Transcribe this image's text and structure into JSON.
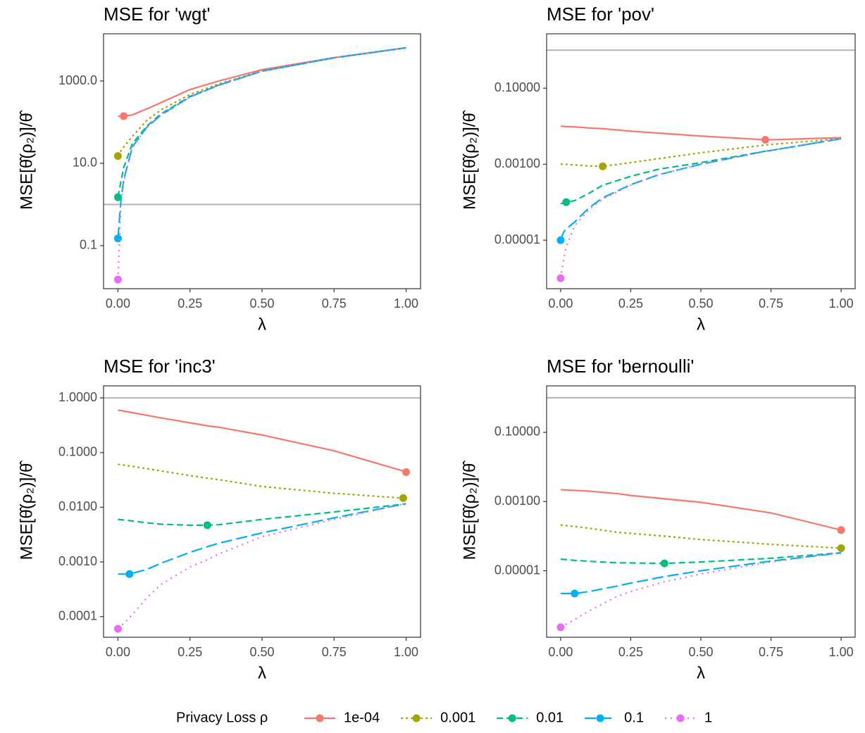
{
  "chart_data": [
    {
      "type": "line",
      "title": "MSE for 'wgt'",
      "x_label": "λ",
      "y_label": "MSE[θ̂(ρ₂)]/θ̂",
      "log_y": true,
      "grid": false,
      "reference_line": 1,
      "xlim": [
        -0.05,
        1.05
      ],
      "xticks": [
        {
          "value": 0,
          "label": "0.00"
        },
        {
          "value": 0.25,
          "label": "0.25"
        },
        {
          "value": 0.5,
          "label": "0.50"
        },
        {
          "value": 0.75,
          "label": "0.75"
        },
        {
          "value": 1,
          "label": "1.00"
        }
      ],
      "ylim": [
        0.009,
        14000
      ],
      "yticks": [
        {
          "value": 0.1,
          "label": "0.1"
        },
        {
          "value": 10,
          "label": "10.0"
        },
        {
          "value": 1000,
          "label": "1000.0"
        }
      ],
      "x": [
        0,
        0.01,
        0.02,
        0.05,
        0.1,
        0.15,
        0.25,
        0.35,
        0.5,
        0.75,
        1
      ],
      "series": [
        {
          "name": "1e-04",
          "color": "#F8766D",
          "linestyle": "solid",
          "values": [
            140,
            140,
            140,
            150,
            210,
            300,
            620,
            1000,
            1880,
            3700,
            6400
          ],
          "marker": {
            "x": 0.02,
            "y": 140
          }
        },
        {
          "name": "0.001",
          "color": "#A3A500",
          "linestyle": "dotted",
          "values": [
            15,
            20,
            25,
            45,
            110,
            200,
            470,
            850,
            1750,
            3650,
            6400
          ],
          "marker": {
            "x": 0,
            "y": 15
          }
        },
        {
          "name": "0.01",
          "color": "#00BF7D",
          "linestyle": "dashed",
          "values": [
            1.5,
            3.5,
            8,
            30,
            80,
            160,
            420,
            800,
            1740,
            3650,
            6400
          ],
          "marker": {
            "x": 0,
            "y": 1.5
          }
        },
        {
          "name": "0.1",
          "color": "#00B0F6",
          "linestyle": "longdash",
          "values": [
            0.15,
            1.2,
            4,
            25,
            75,
            150,
            410,
            790,
            1730,
            3650,
            6400
          ],
          "marker": {
            "x": 0,
            "y": 0.15
          }
        },
        {
          "name": "1",
          "color": "#E76BF3",
          "linestyle": "dotdot",
          "values": [
            0.015,
            1,
            3.5,
            24,
            74,
            150,
            410,
            790,
            1730,
            3650,
            6400
          ],
          "marker": {
            "x": 0,
            "y": 0.015
          }
        }
      ]
    },
    {
      "type": "line",
      "title": "MSE for 'pov'",
      "x_label": "λ",
      "y_label": "MSE[θ̂(ρ₂)]/θ̂",
      "log_y": true,
      "grid": false,
      "reference_line": 1,
      "xlim": [
        -0.05,
        1.05
      ],
      "xticks": [
        {
          "value": 0,
          "label": "0.00"
        },
        {
          "value": 0.25,
          "label": "0.25"
        },
        {
          "value": 0.5,
          "label": "0.50"
        },
        {
          "value": 0.75,
          "label": "0.75"
        },
        {
          "value": 1,
          "label": "1.00"
        }
      ],
      "ylim": [
        5.3e-07,
        2.7
      ],
      "yticks": [
        {
          "value": 1e-05,
          "label": "0.00001"
        },
        {
          "value": 0.001,
          "label": "0.00100"
        },
        {
          "value": 0.1,
          "label": "0.10000"
        }
      ],
      "x": [
        0,
        0.01,
        0.02,
        0.05,
        0.1,
        0.15,
        0.25,
        0.35,
        0.5,
        0.73,
        0.75,
        1
      ],
      "series": [
        {
          "name": "1e-04",
          "color": "#F8766D",
          "linestyle": "solid",
          "values": [
            0.01,
            0.0099,
            0.0098,
            0.0096,
            0.009,
            0.0086,
            0.0074,
            0.0066,
            0.0055,
            0.0044,
            0.0044,
            0.005
          ],
          "marker": {
            "x": 0.73,
            "y": 0.0044
          }
        },
        {
          "name": "0.001",
          "color": "#A3A500",
          "linestyle": "dotted",
          "values": [
            0.001,
            0.001,
            0.00099,
            0.00096,
            0.0009,
            0.00088,
            0.0011,
            0.0014,
            0.002,
            0.0032,
            0.0033,
            0.0047
          ],
          "marker": {
            "x": 0.15,
            "y": 0.00088
          }
        },
        {
          "name": "0.01",
          "color": "#00BF7D",
          "linestyle": "dashed",
          "values": [
            9.2e-05,
            9.6e-05,
            0.0001,
            0.00011,
            0.00017,
            0.00028,
            0.00048,
            0.00074,
            0.0011,
            0.0022,
            0.0023,
            0.0047
          ],
          "marker": {
            "x": 0.02,
            "y": 0.0001
          }
        },
        {
          "name": "0.1",
          "color": "#00B0F6",
          "linestyle": "longdash",
          "values": [
            1e-05,
            1.6e-05,
            2e-05,
            3e-05,
            7e-05,
            0.00013,
            0.00029,
            0.00053,
            0.001,
            0.0022,
            0.0023,
            0.0047
          ],
          "marker": {
            "x": 0,
            "y": 1e-05
          }
        },
        {
          "name": "1",
          "color": "#E76BF3",
          "linestyle": "dotdot",
          "values": [
            1e-06,
            2.9e-06,
            6.8e-06,
            2.4e-05,
            6.3e-05,
            0.00012,
            0.00028,
            0.00053,
            0.001,
            0.0022,
            0.0023,
            0.0047
          ],
          "marker": {
            "x": 0,
            "y": 1e-06
          }
        }
      ]
    },
    {
      "type": "line",
      "title": "MSE for 'inc3'",
      "x_label": "λ",
      "y_label": "MSE[θ̂(ρ₂)]/θ̂",
      "log_y": true,
      "grid": false,
      "reference_line": 1,
      "xlim": [
        -0.05,
        1.05
      ],
      "xticks": [
        {
          "value": 0,
          "label": "0.00"
        },
        {
          "value": 0.25,
          "label": "0.25"
        },
        {
          "value": 0.5,
          "label": "0.50"
        },
        {
          "value": 0.75,
          "label": "0.75"
        },
        {
          "value": 1,
          "label": "1.00"
        }
      ],
      "ylim": [
        4.2e-05,
        1.66
      ],
      "yticks": [
        {
          "value": 0.0001,
          "label": "0.0001"
        },
        {
          "value": 0.001,
          "label": "0.0010"
        },
        {
          "value": 0.01,
          "label": "0.0100"
        },
        {
          "value": 0.1,
          "label": "0.1000"
        },
        {
          "value": 1,
          "label": "1.0000"
        }
      ],
      "x": [
        0,
        0.04,
        0.1,
        0.15,
        0.25,
        0.31,
        0.35,
        0.5,
        0.75,
        0.99,
        1
      ],
      "series": [
        {
          "name": "1e-04",
          "color": "#F8766D",
          "linestyle": "solid",
          "values": [
            0.6,
            0.55,
            0.48,
            0.43,
            0.35,
            0.31,
            0.29,
            0.21,
            0.108,
            0.046,
            0.044
          ],
          "marker": {
            "x": 1,
            "y": 0.044
          }
        },
        {
          "name": "0.001",
          "color": "#A3A500",
          "linestyle": "dotted",
          "values": [
            0.061,
            0.057,
            0.051,
            0.046,
            0.038,
            0.034,
            0.032,
            0.024,
            0.018,
            0.0147,
            0.0147
          ],
          "marker": {
            "x": 0.99,
            "y": 0.0147
          }
        },
        {
          "name": "0.01",
          "color": "#00BF7D",
          "linestyle": "dashed",
          "values": [
            0.006,
            0.0057,
            0.0052,
            0.0049,
            0.0047,
            0.0047,
            0.0048,
            0.006,
            0.0082,
            0.0114,
            0.0116
          ],
          "marker": {
            "x": 0.31,
            "y": 0.0047
          }
        },
        {
          "name": "0.1",
          "color": "#00B0F6",
          "linestyle": "longdash",
          "values": [
            0.0006,
            0.0006,
            0.00073,
            0.00095,
            0.0015,
            0.0019,
            0.0022,
            0.0034,
            0.0064,
            0.0114,
            0.0116
          ],
          "marker": {
            "x": 0.04,
            "y": 0.0006
          }
        },
        {
          "name": "1",
          "color": "#E76BF3",
          "linestyle": "dotdot",
          "values": [
            6e-05,
            9.5e-05,
            0.00022,
            0.00039,
            0.00081,
            0.0011,
            0.0014,
            0.0029,
            0.006,
            0.0114,
            0.0116
          ],
          "marker": {
            "x": 0,
            "y": 6e-05
          }
        }
      ]
    },
    {
      "type": "line",
      "title": "MSE for 'bernoulli'",
      "x_label": "λ",
      "y_label": "MSE[θ̂(ρ₂)]/θ̂",
      "log_y": true,
      "grid": false,
      "reference_line": 1,
      "xlim": [
        -0.05,
        1.05
      ],
      "xticks": [
        {
          "value": 0,
          "label": "0.00"
        },
        {
          "value": 0.25,
          "label": "0.25"
        },
        {
          "value": 0.5,
          "label": "0.50"
        },
        {
          "value": 0.75,
          "label": "0.75"
        },
        {
          "value": 1,
          "label": "1.00"
        }
      ],
      "ylim": [
        1.2e-07,
        2.2
      ],
      "yticks": [
        {
          "value": 1e-05,
          "label": "0.00001"
        },
        {
          "value": 0.001,
          "label": "0.00100"
        },
        {
          "value": 0.1,
          "label": "0.10000"
        }
      ],
      "x": [
        0,
        0.05,
        0.1,
        0.2,
        0.25,
        0.37,
        0.5,
        0.75,
        1
      ],
      "series": [
        {
          "name": "1e-04",
          "color": "#F8766D",
          "linestyle": "solid",
          "values": [
            0.0022,
            0.0021,
            0.002,
            0.0017,
            0.0015,
            0.0012,
            0.00095,
            0.00047,
            0.00015
          ],
          "marker": {
            "x": 1,
            "y": 0.00015
          }
        },
        {
          "name": "0.001",
          "color": "#A3A500",
          "linestyle": "dotted",
          "values": [
            0.00021,
            0.00019,
            0.00017,
            0.00013,
            0.00012,
            0.0001,
            8e-05,
            5.8e-05,
            4.5e-05
          ],
          "marker": {
            "x": 1,
            "y": 4.5e-05
          }
        },
        {
          "name": "0.01",
          "color": "#00BF7D",
          "linestyle": "dashed",
          "values": [
            2.16e-05,
            2e-05,
            1.88e-05,
            1.7e-05,
            1.68e-05,
            1.63e-05,
            1.79e-05,
            2.3e-05,
            3.3e-05
          ],
          "marker": {
            "x": 0.37,
            "y": 1.63e-05
          }
        },
        {
          "name": "0.1",
          "color": "#00B0F6",
          "linestyle": "longdash",
          "values": [
            2.2e-06,
            2.2e-06,
            2.5e-06,
            3.6e-06,
            4.4e-06,
            6.8e-06,
            1e-05,
            1.9e-05,
            3.3e-05
          ],
          "marker": {
            "x": 0.05,
            "y": 2.2e-06
          }
        },
        {
          "name": "1",
          "color": "#E76BF3",
          "linestyle": "dotdot",
          "values": [
            2.33e-07,
            3.9e-07,
            6.8e-07,
            1.8e-06,
            2.5e-06,
            4.8e-06,
            8.1e-06,
            1.8e-05,
            3.3e-05
          ],
          "marker": {
            "x": 0,
            "y": 2.33e-07
          }
        }
      ]
    }
  ],
  "legend": {
    "title": "Privacy Loss ρ",
    "position": "bottom"
  }
}
